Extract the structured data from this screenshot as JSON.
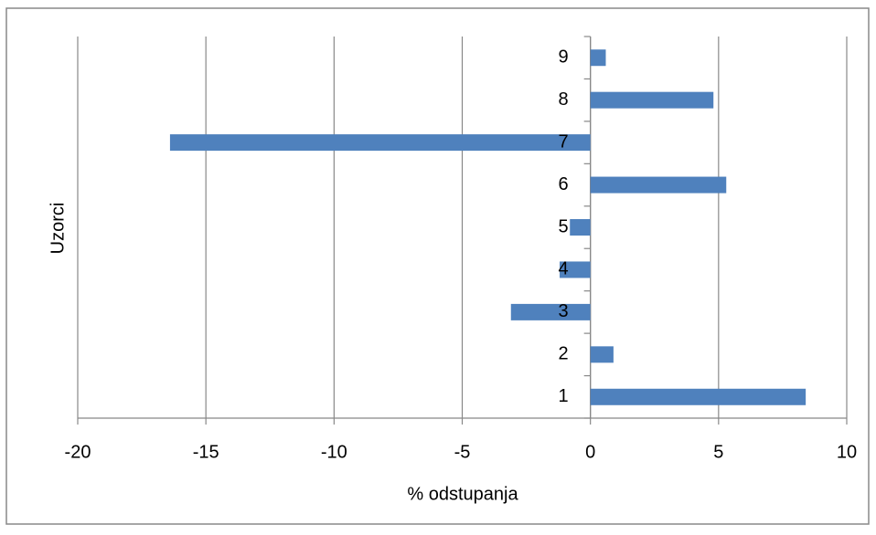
{
  "chart_data": {
    "type": "bar",
    "orientation": "horizontal",
    "xlabel": "% odstupanja",
    "ylabel": "Uzorci",
    "categories": [
      "1",
      "2",
      "3",
      "4",
      "5",
      "6",
      "7",
      "8",
      "9"
    ],
    "values": [
      8.4,
      0.9,
      -3.1,
      -1.2,
      -0.8,
      5.3,
      -16.4,
      4.8,
      0.6
    ],
    "color": "#4f81bd",
    "xlim": [
      -20,
      10
    ],
    "xticks": [
      -20,
      -15,
      -10,
      -5,
      0,
      5,
      10
    ],
    "grid": true
  }
}
